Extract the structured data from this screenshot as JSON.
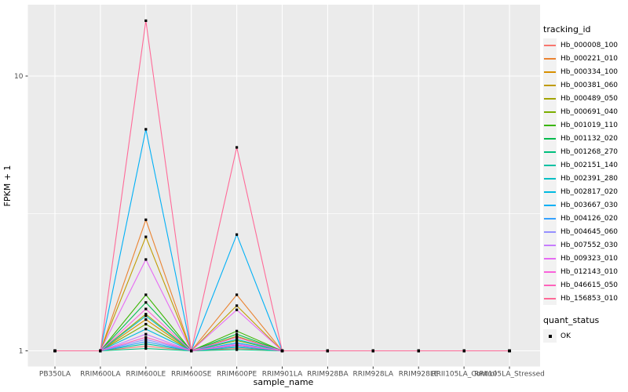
{
  "figure": {
    "background": "#FFFFFF",
    "panel_background": "#EBEBEB",
    "gridline_color": "#FFFFFF",
    "tick_color": "#333333",
    "tick_label_color": "#4D4D4D",
    "axis_title_color": "#000000"
  },
  "legend": {
    "tracking_title": "tracking_id",
    "quant_title": "quant_status",
    "ok_label": "OK",
    "key_background": "#F2F2F2",
    "ok_point_color": "#000000",
    "ok_point_shape": "filled-square"
  },
  "chart_data": {
    "type": "line",
    "title": "",
    "xlabel": "sample_name",
    "ylabel": "FPKM + 1",
    "y_scale": "log10",
    "y_ticks": [
      1,
      10
    ],
    "y_tick_labels": [
      "1",
      "10"
    ],
    "y_minor_ticks": [
      3.162
    ],
    "ylim": [
      0.93,
      18.2
    ],
    "grid": true,
    "legend_position": "right",
    "point_shape": "filled-square",
    "point_color": "#000000",
    "categories": [
      "PB350LA",
      "RRIM600LA",
      "RRIM600LE",
      "RRIM600SE",
      "RRIM600PE",
      "RRIM901LA",
      "RRIM928BA",
      "RRIM928LA",
      "RRIM928LE",
      "RRII105LA_Control",
      "RRII105LA_Stressed"
    ],
    "series": [
      {
        "name": "Hb_000008_100",
        "color": "#F8766D",
        "values": [
          1,
          1,
          1.04,
          1,
          1.02,
          1,
          1,
          1,
          1,
          1,
          1
        ]
      },
      {
        "name": "Hb_000221_010",
        "color": "#EA8331",
        "values": [
          1,
          1,
          3.0,
          1,
          1.6,
          1,
          1,
          1,
          1,
          1,
          1
        ]
      },
      {
        "name": "Hb_000334_100",
        "color": "#D89000",
        "values": [
          1,
          1,
          1.3,
          1,
          1.12,
          1,
          1,
          1,
          1,
          1,
          1
        ]
      },
      {
        "name": "Hb_000381_060",
        "color": "#C09B00",
        "values": [
          1,
          1,
          2.6,
          1,
          1.46,
          1,
          1,
          1,
          1,
          1,
          1
        ]
      },
      {
        "name": "Hb_000489_050",
        "color": "#A3A500",
        "values": [
          1,
          1,
          1.36,
          1,
          1.13,
          1,
          1,
          1,
          1,
          1,
          1
        ]
      },
      {
        "name": "Hb_000691_040",
        "color": "#7CAE00",
        "values": [
          1,
          1,
          1.25,
          1,
          1.09,
          1,
          1,
          1,
          1,
          1,
          1
        ]
      },
      {
        "name": "Hb_001019_110",
        "color": "#39B600",
        "values": [
          1,
          1,
          1.6,
          1,
          1.18,
          1,
          1,
          1,
          1,
          1,
          1
        ]
      },
      {
        "name": "Hb_001132_020",
        "color": "#00BB4E",
        "values": [
          1,
          1,
          1.5,
          1,
          1.15,
          1,
          1,
          1,
          1,
          1,
          1
        ]
      },
      {
        "name": "Hb_001268_270",
        "color": "#00BF7D",
        "values": [
          1,
          1,
          1.02,
          1,
          1.01,
          1,
          1,
          1,
          1,
          1,
          1
        ]
      },
      {
        "name": "Hb_002151_140",
        "color": "#00C1A3",
        "values": [
          1,
          1,
          1.06,
          1,
          1.03,
          1,
          1,
          1,
          1,
          1,
          1
        ]
      },
      {
        "name": "Hb_002391_280",
        "color": "#00BFC4",
        "values": [
          1,
          1,
          1.34,
          1,
          1.1,
          1,
          1,
          1,
          1,
          1,
          1
        ]
      },
      {
        "name": "Hb_002817_020",
        "color": "#00BAE0",
        "values": [
          1,
          1,
          1.2,
          1,
          1.07,
          1,
          1,
          1,
          1,
          1,
          1
        ]
      },
      {
        "name": "Hb_003667_030",
        "color": "#00B0F6",
        "values": [
          1,
          1,
          6.4,
          1,
          2.65,
          1,
          1,
          1,
          1,
          1,
          1
        ]
      },
      {
        "name": "Hb_004126_020",
        "color": "#35A2FF",
        "values": [
          1,
          1,
          1.08,
          1,
          1.04,
          1,
          1,
          1,
          1,
          1,
          1
        ]
      },
      {
        "name": "Hb_004645_060",
        "color": "#9590FF",
        "values": [
          1,
          1,
          1.1,
          1,
          1.05,
          1,
          1,
          1,
          1,
          1,
          1
        ]
      },
      {
        "name": "Hb_007552_030",
        "color": "#C77CFF",
        "values": [
          1,
          1,
          1.15,
          1,
          1.06,
          1,
          1,
          1,
          1,
          1,
          1
        ]
      },
      {
        "name": "Hb_009323_010",
        "color": "#E76BF3",
        "values": [
          1,
          1,
          2.15,
          1,
          1.41,
          1,
          1,
          1,
          1,
          1,
          1
        ]
      },
      {
        "name": "Hb_012143_010",
        "color": "#FA62DB",
        "values": [
          1,
          1,
          1.42,
          1,
          1.12,
          1,
          1,
          1,
          1,
          1,
          1
        ]
      },
      {
        "name": "Hb_046615_050",
        "color": "#FF62BC",
        "values": [
          1,
          1,
          1.12,
          1,
          1.05,
          1,
          1,
          1,
          1,
          1,
          1
        ]
      },
      {
        "name": "Hb_156853_010",
        "color": "#FF6A98",
        "values": [
          1,
          1,
          15.9,
          1,
          5.5,
          1,
          1,
          1,
          1,
          1,
          1
        ]
      }
    ]
  }
}
